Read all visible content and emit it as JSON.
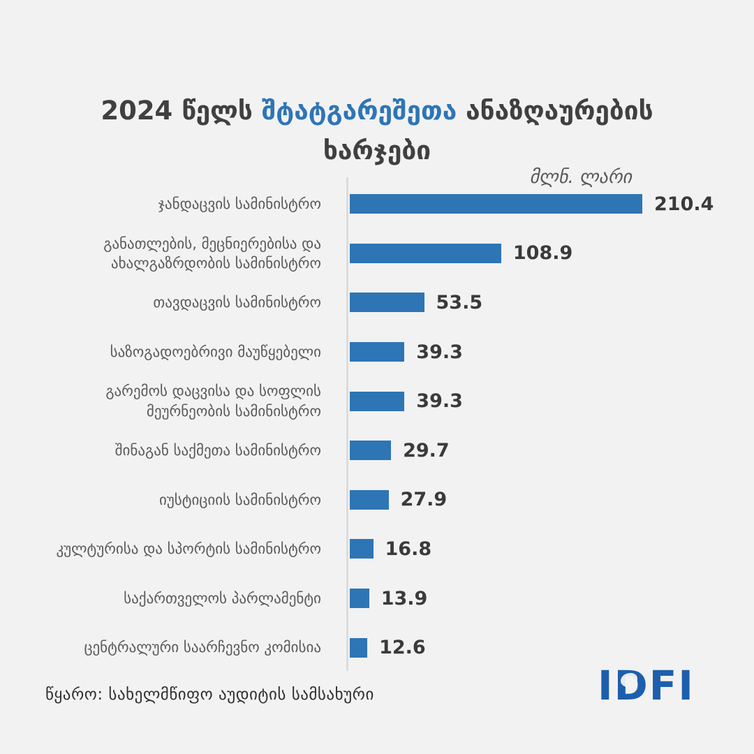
{
  "title": {
    "part1": "2024 წელს ",
    "highlight": "შტატგარეშეთა",
    "part2": " ანაზღაურების ხარჯები"
  },
  "units_label": "მლნ. ლარი",
  "chart_data": {
    "type": "bar",
    "orientation": "horizontal",
    "title": "2024 წელს შტატგარეშეთა ანაზღაურების ხარჯები",
    "unit": "მლნ. ლარი",
    "categories": [
      "ჯანდაცვის სამინისტრო",
      "განათლების, მეცნიერებისა და ახალგაზრდობის სამინისტრო",
      "თავდაცვის სამინისტრო",
      "საზოგადოებრივი მაუწყებელი",
      "გარემოს დაცვისა და სოფლის მეურნეობის სამინისტრო",
      "შინაგან საქმეთა სამინისტრო",
      "იუსტიციის სამინისტრო",
      "კულტურისა და სპორტის სამინისტრო",
      "საქართველოს პარლამენტი",
      "ცენტრალური საარჩევნო კომისია"
    ],
    "values": [
      210.4,
      108.9,
      53.5,
      39.3,
      39.3,
      29.7,
      27.9,
      16.8,
      13.9,
      12.6
    ],
    "xlim": [
      0,
      220
    ],
    "grid": false,
    "legend": false,
    "value_labels_shown": true,
    "bar_color": "#2e75b6"
  },
  "footer": {
    "source": "წყარო: სახელმწიფო აუდიტის სამსახური",
    "logo": "IDFI"
  },
  "colors": {
    "background": "#f2f2f2",
    "accent": "#2e75b6",
    "title_text": "#404040",
    "category_text": "#595959",
    "value_text": "#3a3a3a",
    "axis_line": "#dcdcdc",
    "logo_blue": "#1d5fad"
  }
}
